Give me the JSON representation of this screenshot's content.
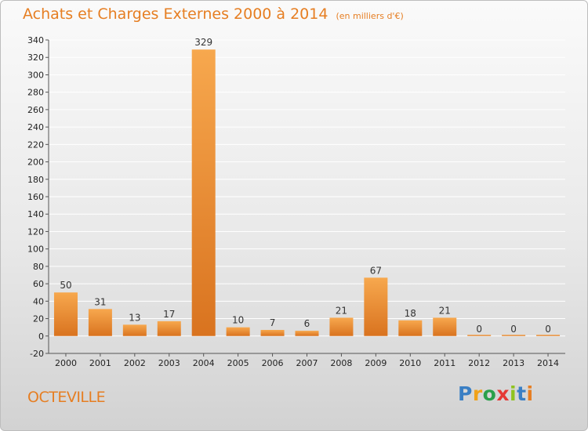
{
  "header": {
    "title": "Achats et Charges Externes 2000 à 2014",
    "unit": "(en milliers d'€)"
  },
  "commune": "OCTEVILLE",
  "logo": {
    "text": "Proxiti",
    "letters": [
      "P",
      "r",
      "o",
      "x",
      "i",
      "t",
      "i"
    ],
    "colors": [
      "#3a7fc4",
      "#f0a21a",
      "#2aa04a",
      "#e53935",
      "#8fc31f",
      "#3a7fc4",
      "#e67e22"
    ]
  },
  "chart_data": {
    "type": "bar",
    "title": "Achats et Charges Externes 2000 à 2014",
    "subtitle": "(en milliers d'€)",
    "categories": [
      "2000",
      "2001",
      "2002",
      "2003",
      "2004",
      "2005",
      "2006",
      "2007",
      "2008",
      "2009",
      "2010",
      "2011",
      "2012",
      "2013",
      "2014"
    ],
    "values": [
      50,
      31,
      13,
      17,
      329,
      10,
      7,
      6,
      21,
      67,
      18,
      21,
      0,
      0,
      0
    ],
    "ylim": [
      -20,
      340
    ],
    "yticks": [
      -20,
      0,
      20,
      40,
      60,
      80,
      100,
      120,
      140,
      160,
      180,
      200,
      220,
      240,
      260,
      280,
      300,
      320,
      340
    ],
    "grid": true,
    "colors": {
      "bar_light": "#f7a84e",
      "bar_dark": "#d9731f",
      "grid": "#ffffff"
    }
  }
}
